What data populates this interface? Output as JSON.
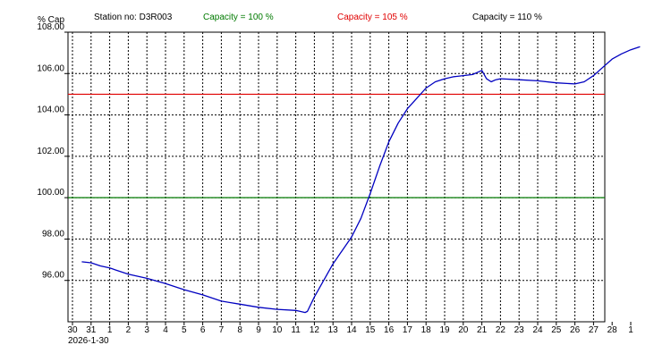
{
  "header": {
    "ylabel": "% Cap",
    "station": "Station no: D3R003",
    "legend": [
      {
        "label": "Capacity = 100 %",
        "color": "#007a00"
      },
      {
        "label": "Capacity = 105 %",
        "color": "#e00000"
      },
      {
        "label": "Capacity = 110 %",
        "color": "#000000"
      }
    ]
  },
  "chart_data": {
    "type": "line",
    "title": "",
    "xlabel": "",
    "ylabel": "% Cap",
    "ylim": [
      94,
      108
    ],
    "y_ticks": [
      96,
      98,
      100,
      102,
      104,
      106,
      108
    ],
    "y_tick_labels": [
      "96.00",
      "98.00",
      "100.00",
      "102.00",
      "104.00",
      "106.00",
      "108.00"
    ],
    "x_tick_labels": [
      "30",
      "31",
      "1",
      "2",
      "3",
      "4",
      "5",
      "6",
      "7",
      "8",
      "9",
      "10",
      "11",
      "12",
      "13",
      "14",
      "15",
      "16",
      "17",
      "18",
      "19",
      "20",
      "21",
      "22",
      "23",
      "24",
      "25",
      "26",
      "27",
      "28",
      "1"
    ],
    "x_start_label": "2026-1-30",
    "grid": true,
    "thresholds": [
      {
        "name": "Capacity = 100 %",
        "value": 100,
        "color": "#007a00"
      },
      {
        "name": "Capacity = 105 %",
        "value": 105,
        "color": "#e00000"
      },
      {
        "name": "Capacity = 110 %",
        "value": 110,
        "color": "#000000"
      }
    ],
    "series": [
      {
        "color": "#0000c0",
        "x": [
          "2026-01-30T12:00",
          "2026-01-31",
          "2026-01-31T12:00",
          "2026-02-01",
          "2026-02-02",
          "2026-02-03",
          "2026-02-04",
          "2026-02-05",
          "2026-02-06",
          "2026-02-07",
          "2026-02-08",
          "2026-02-09",
          "2026-02-10",
          "2026-02-11",
          "2026-02-11T12:00",
          "2026-02-11T15:00",
          "2026-02-12",
          "2026-02-12T12:00",
          "2026-02-13",
          "2026-02-14",
          "2026-02-14T12:00",
          "2026-02-15",
          "2026-02-15T12:00",
          "2026-02-16",
          "2026-02-16T12:00",
          "2026-02-17",
          "2026-02-17T12:00",
          "2026-02-18",
          "2026-02-18T12:00",
          "2026-02-19",
          "2026-02-19T12:00",
          "2026-02-20",
          "2026-02-20T12:00",
          "2026-02-21",
          "2026-02-21T06:00",
          "2026-02-21T12:00",
          "2026-02-21T18:00",
          "2026-02-22",
          "2026-02-23",
          "2026-02-24",
          "2026-02-25",
          "2026-02-26",
          "2026-02-26T12:00",
          "2026-02-27",
          "2026-02-27T12:00",
          "2026-02-28",
          "2026-02-28T12:00",
          "2026-03-01",
          "2026-03-01T12:00"
        ],
        "y": [
          96.9,
          96.85,
          96.7,
          96.6,
          96.3,
          96.1,
          95.85,
          95.55,
          95.3,
          95.0,
          94.85,
          94.7,
          94.6,
          94.55,
          94.45,
          94.5,
          95.2,
          96.0,
          96.8,
          98.1,
          99.0,
          100.2,
          101.5,
          102.7,
          103.6,
          104.3,
          104.8,
          105.3,
          105.6,
          105.75,
          105.85,
          105.9,
          105.95,
          106.15,
          105.75,
          105.6,
          105.7,
          105.75,
          105.7,
          105.65,
          105.55,
          105.5,
          105.6,
          105.9,
          106.3,
          106.7,
          106.95,
          107.15,
          107.3
        ]
      }
    ]
  }
}
